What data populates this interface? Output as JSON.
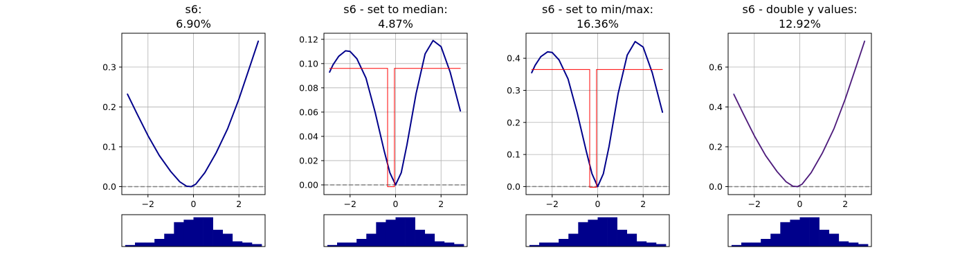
{
  "chart_data": [
    {
      "type": "line",
      "title_line1": "s6:",
      "title_line2": "6.90%",
      "xlim": [
        -3.15,
        3.15
      ],
      "ylim": [
        -0.02,
        0.385
      ],
      "xticks": [
        -2,
        0,
        2
      ],
      "yticks": [
        0.0,
        0.1,
        0.2,
        0.3
      ],
      "ytick_labels": [
        "0.0",
        "0.1",
        "0.2",
        "0.3"
      ],
      "grid": true,
      "baseline": 0,
      "series": [
        {
          "color": "#00008b",
          "width": 2,
          "step": false,
          "points": [
            [
              -2.9,
              0.232
            ],
            [
              -2.5,
              0.185
            ],
            [
              -2.0,
              0.128
            ],
            [
              -1.5,
              0.078
            ],
            [
              -1.0,
              0.038
            ],
            [
              -0.6,
              0.012
            ],
            [
              -0.3,
              0.001
            ],
            [
              -0.1,
              0.0
            ],
            [
              0.1,
              0.006
            ],
            [
              0.5,
              0.035
            ],
            [
              1.0,
              0.085
            ],
            [
              1.5,
              0.145
            ],
            [
              2.0,
              0.22
            ],
            [
              2.5,
              0.305
            ],
            [
              2.85,
              0.365
            ]
          ]
        }
      ],
      "histogram": [
        0.05,
        0.13,
        0.13,
        0.25,
        0.42,
        0.8,
        0.88,
        0.96,
        0.96,
        0.55,
        0.42,
        0.17,
        0.13,
        0.08
      ]
    },
    {
      "type": "line",
      "title_line1": "s6 - set to median:",
      "title_line2": "4.87%",
      "xlim": [
        -3.15,
        3.15
      ],
      "ylim": [
        -0.008,
        0.125
      ],
      "xticks": [
        -2,
        0,
        2
      ],
      "yticks": [
        0.0,
        0.02,
        0.04,
        0.06,
        0.08,
        0.1,
        0.12
      ],
      "ytick_labels": [
        "0.00",
        "0.02",
        "0.04",
        "0.06",
        "0.08",
        "0.10",
        "0.12"
      ],
      "grid": true,
      "baseline": 0,
      "series": [
        {
          "color": "#00008b",
          "width": 2,
          "step": false,
          "points": [
            [
              -2.9,
              0.093
            ],
            [
              -2.75,
              0.099
            ],
            [
              -2.5,
              0.106
            ],
            [
              -2.2,
              0.1105
            ],
            [
              -2.0,
              0.11
            ],
            [
              -1.7,
              0.104
            ],
            [
              -1.3,
              0.088
            ],
            [
              -0.9,
              0.06
            ],
            [
              -0.5,
              0.028
            ],
            [
              -0.25,
              0.01
            ],
            [
              0.0,
              0.0
            ],
            [
              0.25,
              0.01
            ],
            [
              0.5,
              0.033
            ],
            [
              0.9,
              0.075
            ],
            [
              1.3,
              0.108
            ],
            [
              1.65,
              0.119
            ],
            [
              2.0,
              0.114
            ],
            [
              2.4,
              0.093
            ],
            [
              2.85,
              0.061
            ]
          ]
        },
        {
          "color": "#ff0000",
          "width": 1,
          "step": true,
          "points": [
            [
              -2.9,
              0.096
            ],
            [
              -0.35,
              0.096
            ],
            [
              -0.35,
              -0.0015
            ],
            [
              -0.05,
              -0.0015
            ],
            [
              -0.05,
              0.096
            ],
            [
              2.85,
              0.096
            ]
          ]
        }
      ],
      "histogram": [
        0.05,
        0.13,
        0.13,
        0.25,
        0.42,
        0.8,
        0.88,
        0.96,
        0.96,
        0.55,
        0.42,
        0.17,
        0.13,
        0.08
      ]
    },
    {
      "type": "line",
      "title_line1": "s6 - set to min/max:",
      "title_line2": "16.36%",
      "xlim": [
        -3.15,
        3.15
      ],
      "ylim": [
        -0.025,
        0.478
      ],
      "xticks": [
        -2,
        0,
        2
      ],
      "yticks": [
        0.0,
        0.1,
        0.2,
        0.3,
        0.4
      ],
      "ytick_labels": [
        "0.0",
        "0.1",
        "0.2",
        "0.3",
        "0.4"
      ],
      "grid": true,
      "baseline": 0,
      "series": [
        {
          "color": "#00008b",
          "width": 2,
          "step": false,
          "points": [
            [
              -2.9,
              0.355
            ],
            [
              -2.75,
              0.378
            ],
            [
              -2.5,
              0.405
            ],
            [
              -2.2,
              0.42
            ],
            [
              -2.0,
              0.418
            ],
            [
              -1.7,
              0.395
            ],
            [
              -1.3,
              0.335
            ],
            [
              -0.9,
              0.23
            ],
            [
              -0.5,
              0.11
            ],
            [
              -0.25,
              0.04
            ],
            [
              0.0,
              0.0
            ],
            [
              0.25,
              0.04
            ],
            [
              0.5,
              0.125
            ],
            [
              0.9,
              0.29
            ],
            [
              1.3,
              0.41
            ],
            [
              1.65,
              0.452
            ],
            [
              2.0,
              0.435
            ],
            [
              2.4,
              0.355
            ],
            [
              2.85,
              0.232
            ]
          ]
        },
        {
          "color": "#ff0000",
          "width": 1,
          "step": true,
          "points": [
            [
              -2.9,
              0.365
            ],
            [
              -0.35,
              0.365
            ],
            [
              -0.35,
              -0.002
            ],
            [
              -0.05,
              -0.002
            ],
            [
              -0.05,
              0.365
            ],
            [
              2.85,
              0.365
            ]
          ]
        }
      ],
      "histogram": [
        0.05,
        0.13,
        0.13,
        0.25,
        0.42,
        0.8,
        0.88,
        0.96,
        0.96,
        0.55,
        0.42,
        0.17,
        0.13,
        0.08
      ]
    },
    {
      "type": "line",
      "title_line1": "s6 - double y values:",
      "title_line2": "12.92%",
      "xlim": [
        -3.15,
        3.15
      ],
      "ylim": [
        -0.04,
        0.77
      ],
      "xticks": [
        -2,
        0,
        2
      ],
      "yticks": [
        0.0,
        0.2,
        0.4,
        0.6
      ],
      "ytick_labels": [
        "0.0",
        "0.2",
        "0.4",
        "0.6"
      ],
      "grid": true,
      "baseline": 0,
      "series": [
        {
          "color": "#ff0000",
          "width": 1,
          "step": false,
          "points": [
            [
              -2.9,
              0.462
            ],
            [
              -2.5,
              0.368
            ],
            [
              -2.0,
              0.255
            ],
            [
              -1.5,
              0.155
            ],
            [
              -1.0,
              0.075
            ],
            [
              -0.6,
              0.024
            ],
            [
              -0.3,
              0.002
            ],
            [
              -0.1,
              0.0
            ],
            [
              0.1,
              0.012
            ],
            [
              0.5,
              0.07
            ],
            [
              1.0,
              0.17
            ],
            [
              1.5,
              0.29
            ],
            [
              2.0,
              0.44
            ],
            [
              2.5,
              0.61
            ],
            [
              2.85,
              0.73
            ]
          ]
        },
        {
          "color": "#00008b",
          "width": 2,
          "step": false,
          "opacity": 0.65,
          "points": [
            [
              -2.9,
              0.464
            ],
            [
              -2.5,
              0.37
            ],
            [
              -2.0,
              0.256
            ],
            [
              -1.5,
              0.156
            ],
            [
              -1.0,
              0.076
            ],
            [
              -0.6,
              0.024
            ],
            [
              -0.3,
              0.002
            ],
            [
              -0.1,
              0.0
            ],
            [
              0.1,
              0.012
            ],
            [
              0.5,
              0.07
            ],
            [
              1.0,
              0.17
            ],
            [
              1.5,
              0.29
            ],
            [
              2.0,
              0.44
            ],
            [
              2.5,
              0.61
            ],
            [
              2.85,
              0.73
            ]
          ]
        }
      ],
      "histogram": [
        0.05,
        0.13,
        0.13,
        0.25,
        0.42,
        0.8,
        0.88,
        0.96,
        0.96,
        0.55,
        0.42,
        0.17,
        0.13,
        0.08
      ]
    }
  ]
}
